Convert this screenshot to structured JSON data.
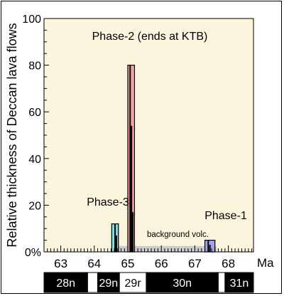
{
  "chart_data": {
    "type": "bar",
    "ylabel": "Relative thickness of Deccan lava flows",
    "x_unit": "Ma",
    "xlim": [
      62.5,
      68.75
    ],
    "ylim": [
      0,
      100
    ],
    "x_ticks": [
      63,
      64,
      65,
      66,
      67,
      68
    ],
    "y_ticks": [
      0,
      20,
      40,
      60,
      80,
      100
    ],
    "y_tick_labels": [
      "0%",
      "20",
      "40",
      "60",
      "80",
      "100"
    ],
    "plot_bg": "#fbf5dd",
    "bars": [
      {
        "label": "Phase-3",
        "x0": 64.52,
        "x1": 64.72,
        "value": 12,
        "color": "#7fe3e3",
        "flows": [
          {
            "x": 64.62,
            "value": 12
          },
          {
            "x": 64.66,
            "value": 7
          }
        ]
      },
      {
        "label": "Phase-2 (ends at KTB)",
        "x0": 65.0,
        "x1": 65.2,
        "value": 80,
        "color": "#f5a3a3",
        "flows": [
          {
            "x": 65.07,
            "value": 80
          },
          {
            "x": 65.11,
            "value": 54
          },
          {
            "x": 65.15,
            "value": 17
          }
        ]
      },
      {
        "label": "Phase-1",
        "x0": 67.3,
        "x1": 67.6,
        "value": 5,
        "color": "#a6a2ec",
        "flows": [
          {
            "x": 67.4,
            "value": 5
          },
          {
            "x": 67.45,
            "value": 3
          }
        ]
      }
    ],
    "background": {
      "label": "background volc.",
      "x0": 64.55,
      "x1": 67.65,
      "value": 2.5,
      "color": "#cbcbcb"
    },
    "magnetochrons": [
      {
        "label": "28n",
        "x0": 62.5,
        "x1": 63.8,
        "polarity": "normal"
      },
      {
        "label": "",
        "x0": 63.8,
        "x1": 64.1,
        "polarity": "reverse"
      },
      {
        "label": "29n",
        "x0": 64.1,
        "x1": 64.75,
        "polarity": "normal"
      },
      {
        "label": "29r",
        "x0": 64.75,
        "x1": 65.55,
        "polarity": "reverse"
      },
      {
        "label": "30n",
        "x0": 65.55,
        "x1": 67.7,
        "polarity": "normal"
      },
      {
        "label": "",
        "x0": 67.7,
        "x1": 67.9,
        "polarity": "reverse"
      },
      {
        "label": "31n",
        "x0": 67.9,
        "x1": 68.75,
        "polarity": "normal"
      }
    ]
  }
}
